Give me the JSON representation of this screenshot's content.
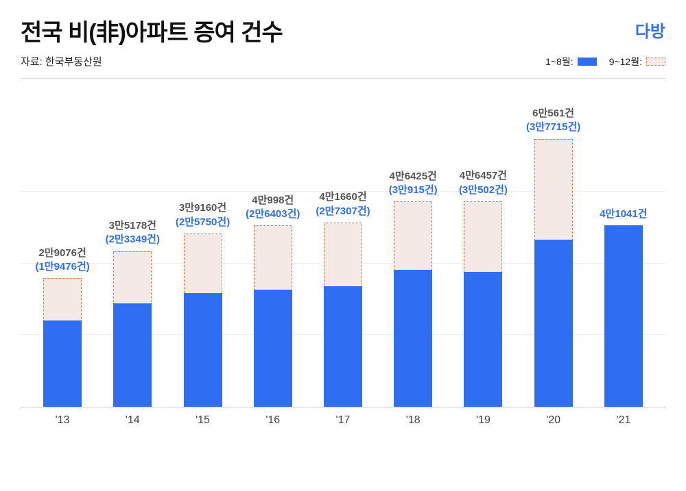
{
  "title": "전국 비(非)아파트 증여 건수",
  "source_label": "자료: 한국부동산원",
  "logo_text": "다방",
  "legend": {
    "primary_label": "1~8월:",
    "secondary_label": "9~12월:"
  },
  "chart": {
    "type": "stacked-bar",
    "ylim_max": 65000,
    "gridlines": [
      0.25,
      0.5,
      0.75
    ],
    "colors": {
      "primary": "#2f6ef2",
      "secondary_fill": "#f4e9e4",
      "secondary_border": "#e06a3a",
      "total_label": "#555555",
      "part_label": "#2f6ef2",
      "xaxis": "#444444",
      "grid": "#eeeeee",
      "axis_line": "#cccccc",
      "top_rule": "#dddddd"
    },
    "categories": [
      "'13",
      "'14",
      "'15",
      "'16",
      "'17",
      "'18",
      "'19",
      "'20",
      "'21"
    ],
    "bars": [
      {
        "primary": 19476,
        "secondary": 9600,
        "total_label": "2만9076건",
        "part_label": "(1만9476건)"
      },
      {
        "primary": 23349,
        "secondary": 11829,
        "total_label": "3만5178건",
        "part_label": "(2만3349건)"
      },
      {
        "primary": 25750,
        "secondary": 13410,
        "total_label": "3만9160건",
        "part_label": "(2만5750건)"
      },
      {
        "primary": 26403,
        "secondary": 14595,
        "total_label": "4만998건",
        "part_label": "(2만6403건)"
      },
      {
        "primary": 27307,
        "secondary": 14353,
        "total_label": "4만1660건",
        "part_label": "(2만7307건)"
      },
      {
        "primary": 30915,
        "secondary": 15510,
        "total_label": "4만6425건",
        "part_label": "(3만915건)"
      },
      {
        "primary": 30502,
        "secondary": 15955,
        "total_label": "4만6457건",
        "part_label": "(3만502건)"
      },
      {
        "primary": 37715,
        "secondary": 22846,
        "total_label": "6만561건",
        "part_label": "(3만7715건)"
      },
      {
        "primary": 41041,
        "secondary": 0,
        "total_label": "",
        "part_label": "4만1041건"
      }
    ]
  }
}
